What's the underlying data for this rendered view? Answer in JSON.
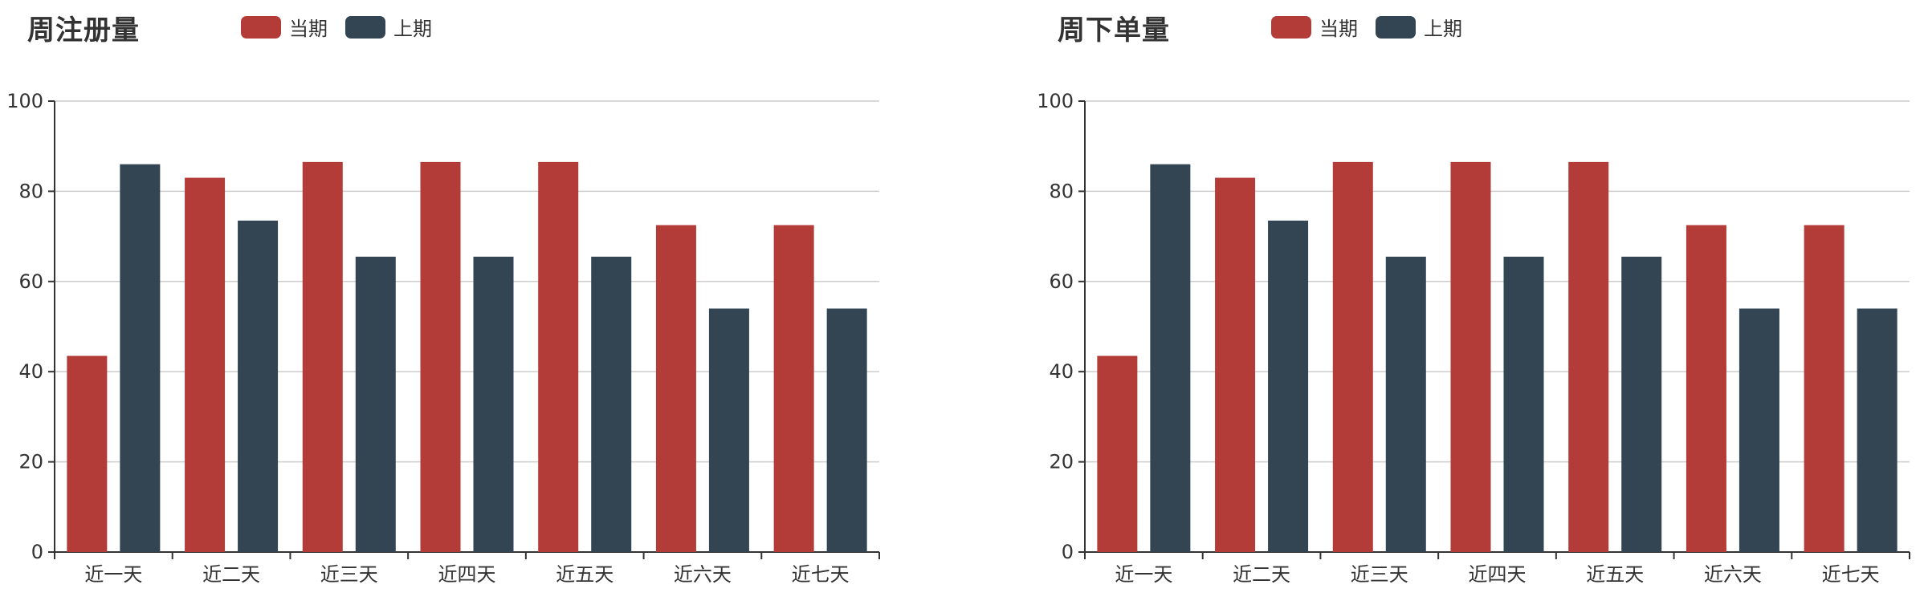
{
  "colors": {
    "current": "#b33c38",
    "previous": "#334452",
    "axis": "#333333",
    "grid": "#cccccc"
  },
  "legend": {
    "current_label": "当期",
    "previous_label": "上期"
  },
  "chart_data": [
    {
      "type": "bar",
      "title": "周注册量",
      "categories": [
        "近一天",
        "近二天",
        "近三天",
        "近四天",
        "近五天",
        "近六天",
        "近七天"
      ],
      "series": [
        {
          "name": "当期",
          "values": [
            43.5,
            83,
            86.5,
            86.5,
            86.5,
            72.5,
            72.5
          ]
        },
        {
          "name": "上期",
          "values": [
            86,
            73.5,
            65.5,
            65.5,
            65.5,
            54,
            54
          ]
        }
      ],
      "ylim": [
        0,
        100
      ],
      "yticks": [
        0,
        20,
        40,
        60,
        80,
        100
      ],
      "grid": true,
      "legend_position": "top-center"
    },
    {
      "type": "bar",
      "title": "周下单量",
      "categories": [
        "近一天",
        "近二天",
        "近三天",
        "近四天",
        "近五天",
        "近六天",
        "近七天"
      ],
      "series": [
        {
          "name": "当期",
          "values": [
            43.5,
            83,
            86.5,
            86.5,
            86.5,
            72.5,
            72.5
          ]
        },
        {
          "name": "上期",
          "values": [
            86,
            73.5,
            65.5,
            65.5,
            65.5,
            54,
            54
          ]
        }
      ],
      "ylim": [
        0,
        100
      ],
      "yticks": [
        0,
        20,
        40,
        60,
        80,
        100
      ],
      "grid": true,
      "legend_position": "top-center"
    }
  ]
}
